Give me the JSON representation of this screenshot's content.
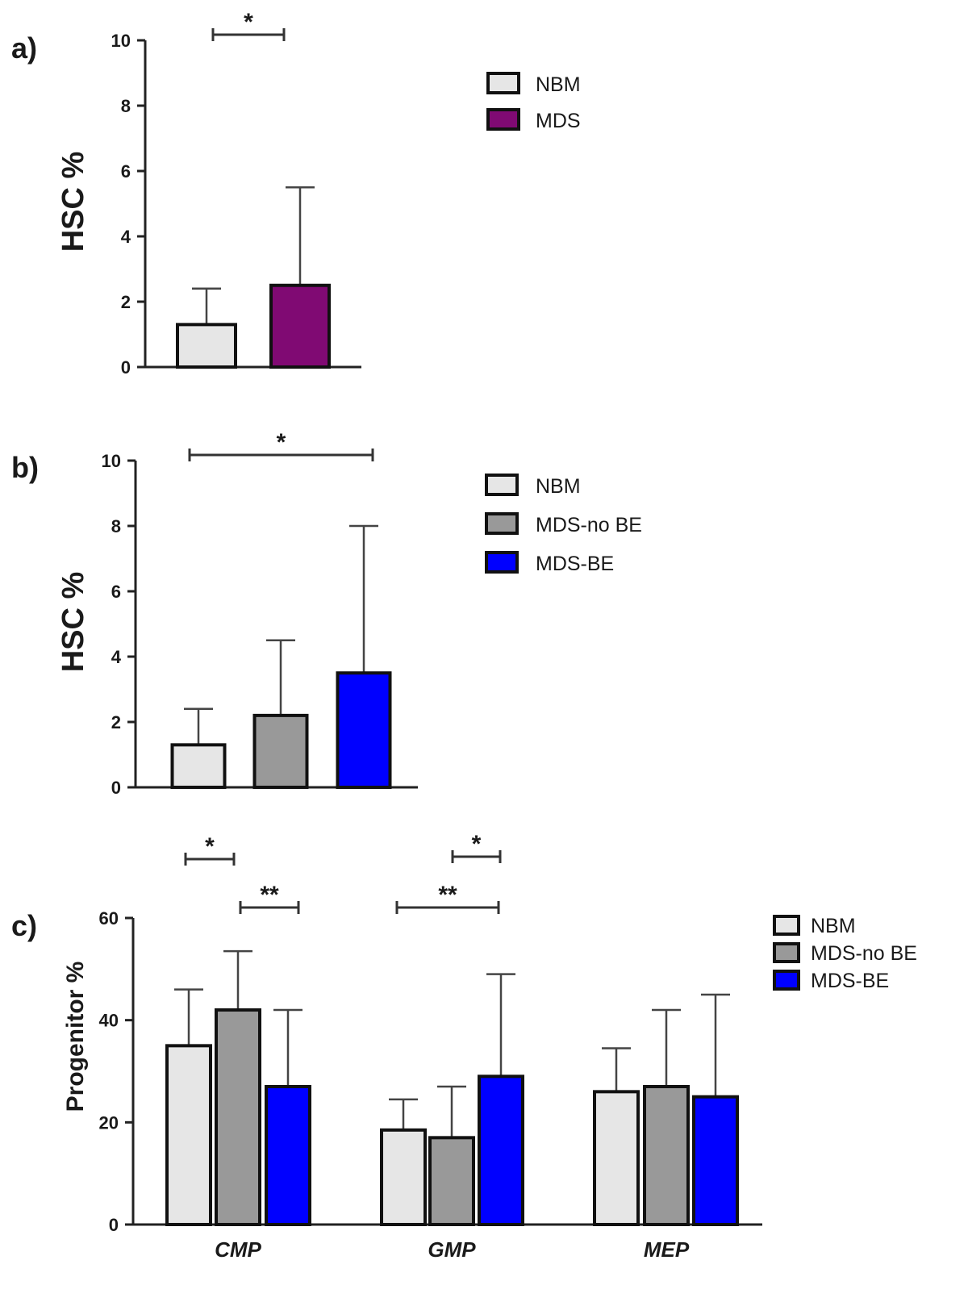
{
  "chart_data": [
    {
      "panel": "a)",
      "type": "bar",
      "ylabel": "HSC %",
      "ylim": [
        0,
        10
      ],
      "yticks": [
        "0",
        "2",
        "4",
        "6",
        "8",
        "10"
      ],
      "legend_position": "top-right",
      "series": [
        {
          "name": "NBM",
          "values": [
            1.3
          ],
          "errors": [
            1.1
          ],
          "color": "#e6e6e6"
        },
        {
          "name": "MDS",
          "values": [
            2.5
          ],
          "errors": [
            3.0
          ],
          "color": "#800a73"
        }
      ],
      "annotations": [
        {
          "label": "*",
          "from": "NBM",
          "to": "MDS"
        }
      ]
    },
    {
      "panel": "b)",
      "type": "bar",
      "ylabel": "HSC %",
      "ylim": [
        0,
        10
      ],
      "yticks": [
        "0",
        "2",
        "4",
        "6",
        "8",
        "10"
      ],
      "legend_position": "top-right",
      "series": [
        {
          "name": "NBM",
          "values": [
            1.3
          ],
          "errors": [
            1.1
          ],
          "color": "#e6e6e6"
        },
        {
          "name": "MDS-no BE",
          "values": [
            2.2
          ],
          "errors": [
            2.3
          ],
          "color": "#999999"
        },
        {
          "name": "MDS-BE",
          "values": [
            3.5
          ],
          "errors": [
            4.5
          ],
          "color": "#0000ff"
        }
      ],
      "annotations": [
        {
          "label": "*",
          "from": "NBM",
          "to": "MDS-BE"
        }
      ]
    },
    {
      "panel": "c)",
      "type": "bar",
      "ylabel": "Progenitor %",
      "ylim": [
        0,
        60
      ],
      "yticks": [
        "0",
        "20",
        "40",
        "60"
      ],
      "legend_position": "top-right",
      "categories": [
        "CMP",
        "GMP",
        "MEP"
      ],
      "series": [
        {
          "name": "NBM",
          "values": [
            35,
            18.5,
            26
          ],
          "errors": [
            11,
            6,
            8.5
          ],
          "color": "#e6e6e6"
        },
        {
          "name": "MDS-no BE",
          "values": [
            42,
            17,
            27
          ],
          "errors": [
            11.5,
            10,
            15
          ],
          "color": "#999999"
        },
        {
          "name": "MDS-BE",
          "values": [
            27,
            29,
            25
          ],
          "errors": [
            15,
            20,
            20
          ],
          "color": "#0000ff"
        }
      ],
      "annotations": [
        {
          "label": "*",
          "category": "CMP",
          "from": "NBM",
          "to": "MDS-no BE"
        },
        {
          "label": "**",
          "category": "CMP",
          "from": "MDS-no BE",
          "to": "MDS-BE"
        },
        {
          "label": "*",
          "category": "GMP",
          "from": "MDS-no BE",
          "to": "MDS-BE"
        },
        {
          "label": "**",
          "category": "GMP",
          "from": "NBM",
          "to": "MDS-BE"
        }
      ]
    }
  ]
}
